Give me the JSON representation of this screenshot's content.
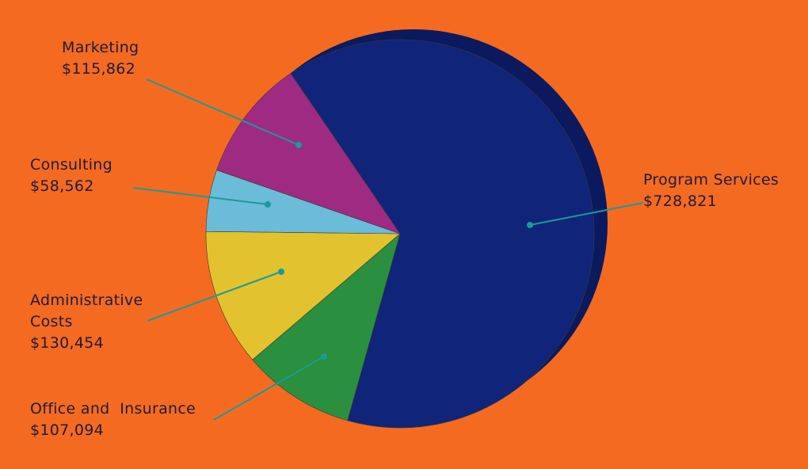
{
  "chart_data": {
    "type": "pie",
    "categories": [
      "Program Services",
      "Office and  Insurance",
      "Administrative Costs",
      "Consulting",
      "Marketing"
    ],
    "values": [
      728821,
      107094,
      130454,
      58562,
      115862
    ],
    "value_labels": [
      "$728,821",
      "$107,094",
      "$130,454",
      "$58,562",
      "$115,862"
    ],
    "colors": [
      "#10247a",
      "#2a8f3e",
      "#e2c22e",
      "#6bbcd8",
      "#9e2a82"
    ]
  }
}
